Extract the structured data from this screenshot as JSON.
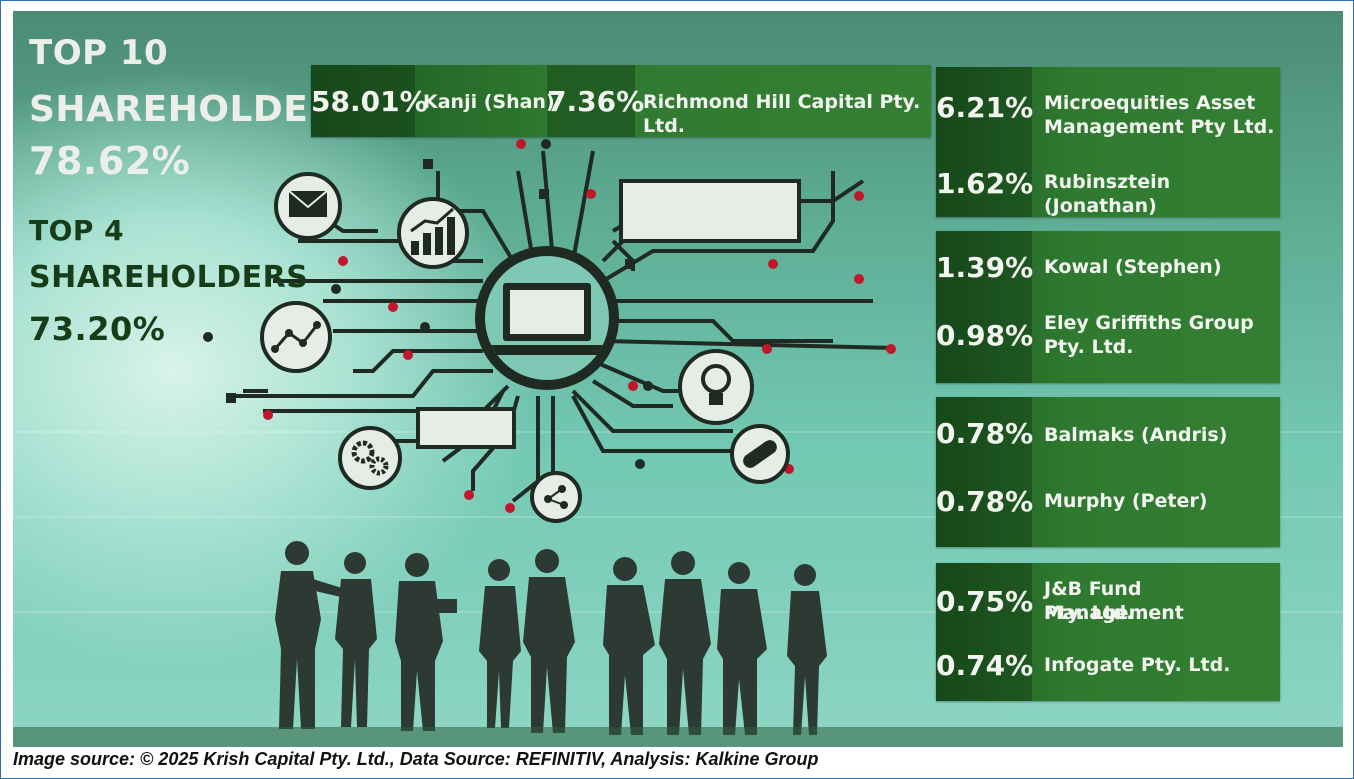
{
  "header": {
    "top10_label_line1": "TOP 10",
    "top10_label_line2": "SHAREHOLDERS",
    "top10_pct": "78.62%",
    "top4_label_line1": "TOP 4",
    "top4_label_line2": "SHAREHOLDERS",
    "top4_pct": "73.20%"
  },
  "top_row": [
    {
      "pct": "58.01%",
      "name": "Kanji (Shan)"
    },
    {
      "pct": "7.36%",
      "name": "Richmond Hill Capital Pty. Ltd."
    }
  ],
  "right_column": [
    {
      "pct": "6.21%",
      "name_line1": "Microequities Asset",
      "name_line2": "Management Pty Ltd."
    },
    {
      "pct": "1.62%",
      "name_line1": "Rubinsztein (Jonathan)",
      "name_line2": ""
    },
    {
      "pct": "1.39%",
      "name_line1": "Kowal (Stephen)",
      "name_line2": ""
    },
    {
      "pct": "0.98%",
      "name_line1": "Eley Griffiths Group",
      "name_line2": "Pty. Ltd."
    },
    {
      "pct": "0.78%",
      "name_line1": "Balmaks (Andris)",
      "name_line2": ""
    },
    {
      "pct": "0.78%",
      "name_line1": "Murphy (Peter)",
      "name_line2": ""
    },
    {
      "pct": "0.75%",
      "name_line1": "J&B Fund Management",
      "name_line2": "Pty. Ltd."
    },
    {
      "pct": "0.74%",
      "name_line1": "Infogate Pty. Ltd.",
      "name_line2": ""
    }
  ],
  "footer": "Image source: © 2025 Krish Capital Pty. Ltd., Data Source: REFINITIV, Analysis: Kalkine Group",
  "colors": {
    "panel_green": "#5fae96",
    "box_green": "#2f7a30",
    "dark_text": "#163d18",
    "accent_red": "#c0182a"
  },
  "icons": [
    "envelope-icon",
    "growth-chart-icon",
    "line-chart-icon",
    "laptop-icon",
    "lightbulb-icon",
    "gears-icon",
    "share-icon",
    "pill-icon"
  ]
}
